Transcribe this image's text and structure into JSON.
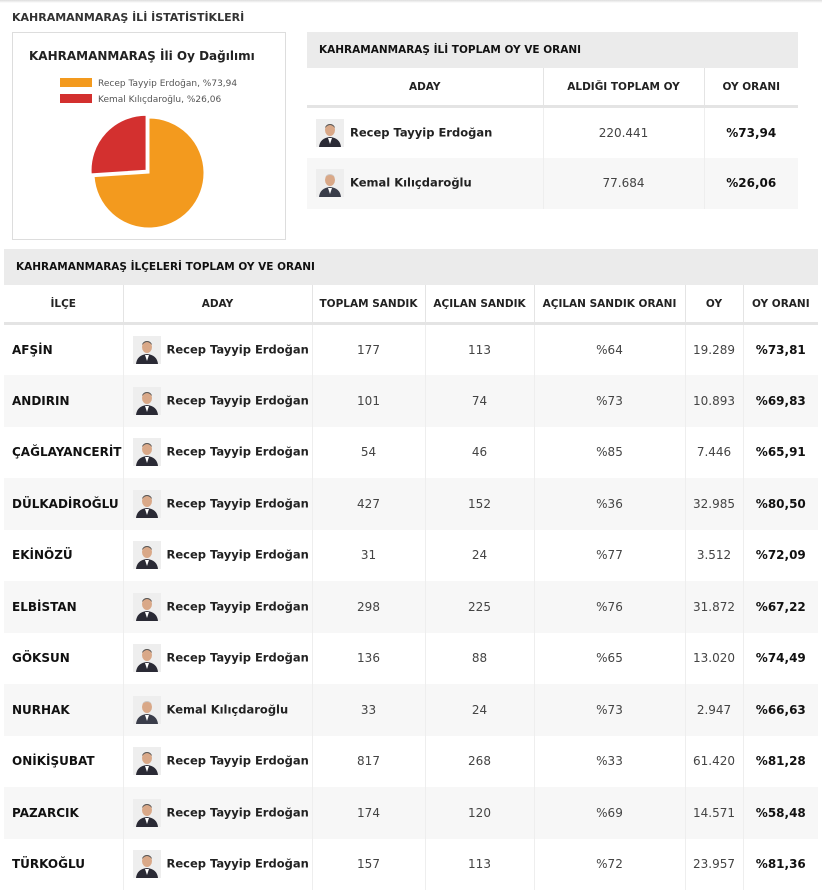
{
  "header": {
    "title": "KAHRAMANMARAŞ İLİ İSTATİSTİKLERİ"
  },
  "chart_data": {
    "type": "pie",
    "title": "KAHRAMANMARAŞ İli Oy Dağılımı",
    "categories": [
      "Recep Tayyip Erdoğan, %73,94",
      "Kemal Kılıçdaroğlu, %26,06"
    ],
    "values": [
      73.94,
      26.06
    ],
    "colors": [
      "#f39a1e",
      "#d3302f"
    ]
  },
  "province_table": {
    "title": "KAHRAMANMARAŞ İLİ TOPLAM OY VE ORANI",
    "columns": [
      "ADAY",
      "ALDIĞI TOPLAM OY",
      "OY ORANI"
    ],
    "rows": [
      [
        "Recep Tayyip Erdoğan",
        "220.441",
        "%73,94"
      ],
      [
        "Kemal Kılıçdaroğlu",
        "77.684",
        "%26,06"
      ]
    ]
  },
  "district_table": {
    "title": "KAHRAMANMARAŞ İLÇELERİ TOPLAM OY VE ORANI",
    "columns": [
      "İLÇE",
      "ADAY",
      "TOPLAM SANDIK",
      "AÇILAN SANDIK",
      "AÇILAN SANDIK ORANI",
      "OY",
      "OY ORANI"
    ],
    "rows": [
      [
        "AFŞİN",
        "Recep Tayyip Erdoğan",
        "177",
        "113",
        "%64",
        "19.289",
        "%73,81"
      ],
      [
        "ANDIRIN",
        "Recep Tayyip Erdoğan",
        "101",
        "74",
        "%73",
        "10.893",
        "%69,83"
      ],
      [
        "ÇAĞLAYANCERİT",
        "Recep Tayyip Erdoğan",
        "54",
        "46",
        "%85",
        "7.446",
        "%65,91"
      ],
      [
        "DÜLKADİROĞLU",
        "Recep Tayyip Erdoğan",
        "427",
        "152",
        "%36",
        "32.985",
        "%80,50"
      ],
      [
        "EKİNÖZÜ",
        "Recep Tayyip Erdoğan",
        "31",
        "24",
        "%77",
        "3.512",
        "%72,09"
      ],
      [
        "ELBİSTAN",
        "Recep Tayyip Erdoğan",
        "298",
        "225",
        "%76",
        "31.872",
        "%67,22"
      ],
      [
        "GÖKSUN",
        "Recep Tayyip Erdoğan",
        "136",
        "88",
        "%65",
        "13.020",
        "%74,49"
      ],
      [
        "NURHAK",
        "Kemal Kılıçdaroğlu",
        "33",
        "24",
        "%73",
        "2.947",
        "%66,63"
      ],
      [
        "ONİKİŞUBAT",
        "Recep Tayyip Erdoğan",
        "817",
        "268",
        "%33",
        "61.420",
        "%81,28"
      ],
      [
        "PAZARCIK",
        "Recep Tayyip Erdoğan",
        "174",
        "120",
        "%69",
        "14.571",
        "%58,48"
      ],
      [
        "TÜRKOĞLU",
        "Recep Tayyip Erdoğan",
        "157",
        "113",
        "%72",
        "23.957",
        "%81,36"
      ]
    ]
  }
}
